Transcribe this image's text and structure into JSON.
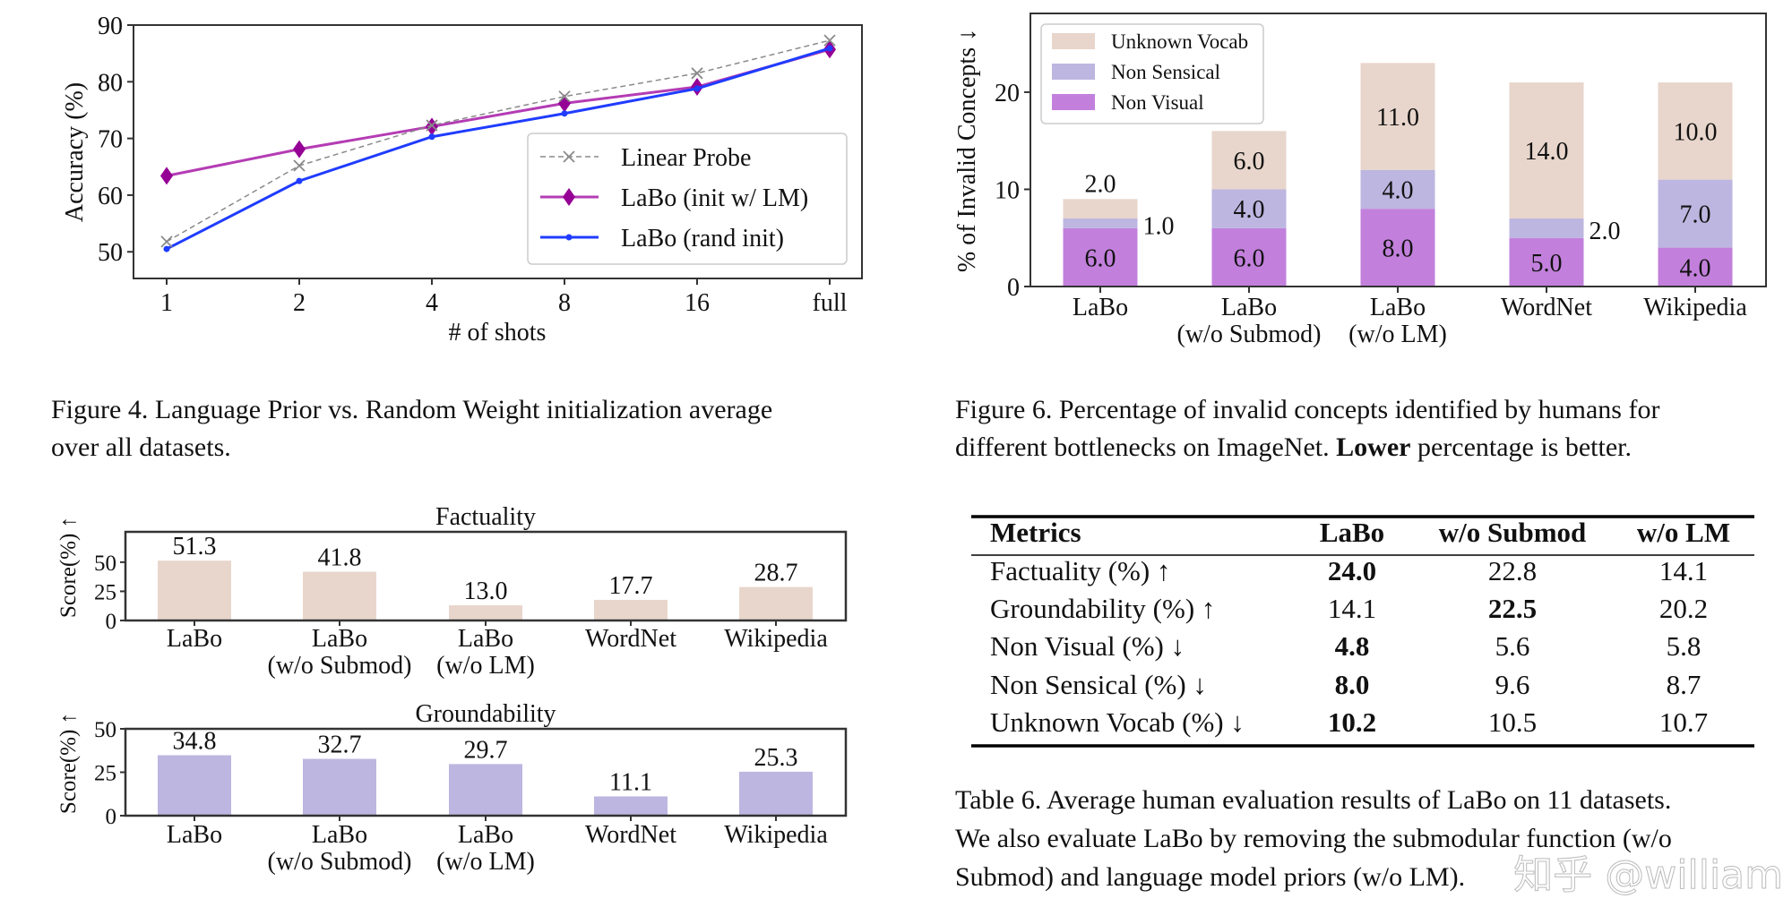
{
  "colors": {
    "unknown_vocab": "#e8d6cc",
    "non_sensical": "#bcb6e0",
    "non_visual": "#c280dc",
    "linear_probe": "#8a8a8a",
    "labo_lm": "#b43cb4",
    "labo_lm_marker": "#950095",
    "labo_rand": "#1f3cff",
    "axis": "#333333"
  },
  "chart_data": [
    {
      "type": "line",
      "xlabel": "# of shots",
      "ylabel": "Accuracy (%)",
      "categories": [
        "1",
        "2",
        "4",
        "8",
        "16",
        "full"
      ],
      "yticks": [
        50,
        60,
        70,
        80,
        90
      ],
      "ylim": [
        45.3,
        90
      ],
      "grid": false,
      "legend": "center-right",
      "series": [
        {
          "name": "Linear Probe",
          "style": "dashed",
          "marker": "x",
          "values": [
            51.8,
            65.2,
            72.3,
            77.4,
            81.5,
            87.3
          ]
        },
        {
          "name": "LaBo (init w/ LM)",
          "style": "solid",
          "marker": "diamond",
          "values": [
            63.4,
            68.1,
            72.1,
            76.2,
            79.1,
            85.7
          ]
        },
        {
          "name": "LaBo (rand init)",
          "style": "solid",
          "marker": "dot",
          "values": [
            50.5,
            62.5,
            70.3,
            74.4,
            78.8,
            85.9
          ]
        }
      ]
    },
    {
      "type": "bar",
      "stacked": true,
      "ylabel": "% of Invalid Concepts ↓",
      "categories": [
        [
          "LaBo",
          ""
        ],
        [
          "LaBo",
          "(w/o Submod)"
        ],
        [
          "LaBo",
          "(w/o LM)"
        ],
        [
          "WordNet",
          ""
        ],
        [
          "Wikipedia",
          ""
        ]
      ],
      "yticks": [
        0,
        10,
        20
      ],
      "ylim": [
        0,
        28.1
      ],
      "legend": "top-left",
      "series": [
        {
          "name": "Non Visual",
          "values": [
            6.0,
            6.0,
            8.0,
            5.0,
            4.0
          ],
          "labels": [
            "6.0",
            "6.0",
            "8.0",
            "5.0",
            "4.0"
          ]
        },
        {
          "name": "Non Sensical",
          "values": [
            1.0,
            4.0,
            4.0,
            2.0,
            7.0
          ],
          "labels": [
            "1.0",
            "4.0",
            "4.0",
            "2.0",
            "7.0"
          ]
        },
        {
          "name": "Unknown Vocab",
          "values": [
            2.0,
            6.0,
            11.0,
            14.0,
            10.0
          ],
          "labels": [
            "2.0",
            "6.0",
            "11.0",
            "14.0",
            "10.0"
          ]
        }
      ]
    },
    {
      "type": "bar",
      "title": "Factuality",
      "ylabel": "Score(%) ↑",
      "categories": [
        [
          "LaBo",
          ""
        ],
        [
          "LaBo",
          "(w/o Submod)"
        ],
        [
          "LaBo",
          "(w/o LM)"
        ],
        [
          "WordNet",
          ""
        ],
        [
          "Wikipedia",
          ""
        ]
      ],
      "values": [
        51.3,
        41.8,
        13.0,
        17.7,
        28.7
      ],
      "labels": [
        "51.3",
        "41.8",
        "13.0",
        "17.7",
        "28.7"
      ],
      "yticks": [
        0,
        25,
        50
      ],
      "ylim": [
        0,
        76
      ]
    },
    {
      "type": "bar",
      "title": "Groundability",
      "ylabel": "Score(%) ↑",
      "categories": [
        [
          "LaBo",
          ""
        ],
        [
          "LaBo",
          "(w/o Submod)"
        ],
        [
          "LaBo",
          "(w/o LM)"
        ],
        [
          "WordNet",
          ""
        ],
        [
          "Wikipedia",
          ""
        ]
      ],
      "values": [
        34.8,
        32.7,
        29.7,
        11.1,
        25.3
      ],
      "labels": [
        "34.8",
        "32.7",
        "29.7",
        "11.1",
        "25.3"
      ],
      "yticks": [
        0,
        25,
        50
      ],
      "ylim": [
        0,
        50
      ]
    },
    {
      "type": "table",
      "headers": [
        "Metrics",
        "LaBo",
        "w/o Submod",
        "w/o LM"
      ],
      "rows": [
        {
          "cells": [
            "Factuality (%) ↑",
            "24.0",
            "22.8",
            "14.1"
          ],
          "bold": 1
        },
        {
          "cells": [
            "Groundability (%) ↑",
            "14.1",
            "22.5",
            "20.2"
          ],
          "bold": 2
        },
        {
          "cells": [
            "Non Visual (%) ↓",
            "4.8",
            "5.6",
            "5.8"
          ],
          "bold": 1
        },
        {
          "cells": [
            "Non Sensical (%) ↓",
            "8.0",
            "9.6",
            "8.7"
          ],
          "bold": 1
        },
        {
          "cells": [
            "Unknown Vocab (%) ↓",
            "10.2",
            "10.5",
            "10.7"
          ],
          "bold": 1
        }
      ]
    }
  ],
  "captions": {
    "fig4": [
      "Figure 4. Language Prior vs. Random Weight initialization average",
      "over all datasets."
    ],
    "fig6": {
      "line1": "Figure 6. Percentage of invalid concepts identified by humans for",
      "line2_pre": "different bottlenecks on ImageNet. ",
      "line2_bold": "Lower",
      "line2_post": " percentage is better."
    },
    "table6": [
      "Table 6. Average human evaluation results of LaBo on 11 datasets.",
      "We also evaluate LaBo by removing the submodular function (w/o",
      "Submod) and language model priors (w/o LM)."
    ]
  },
  "watermark": "知乎 @william"
}
